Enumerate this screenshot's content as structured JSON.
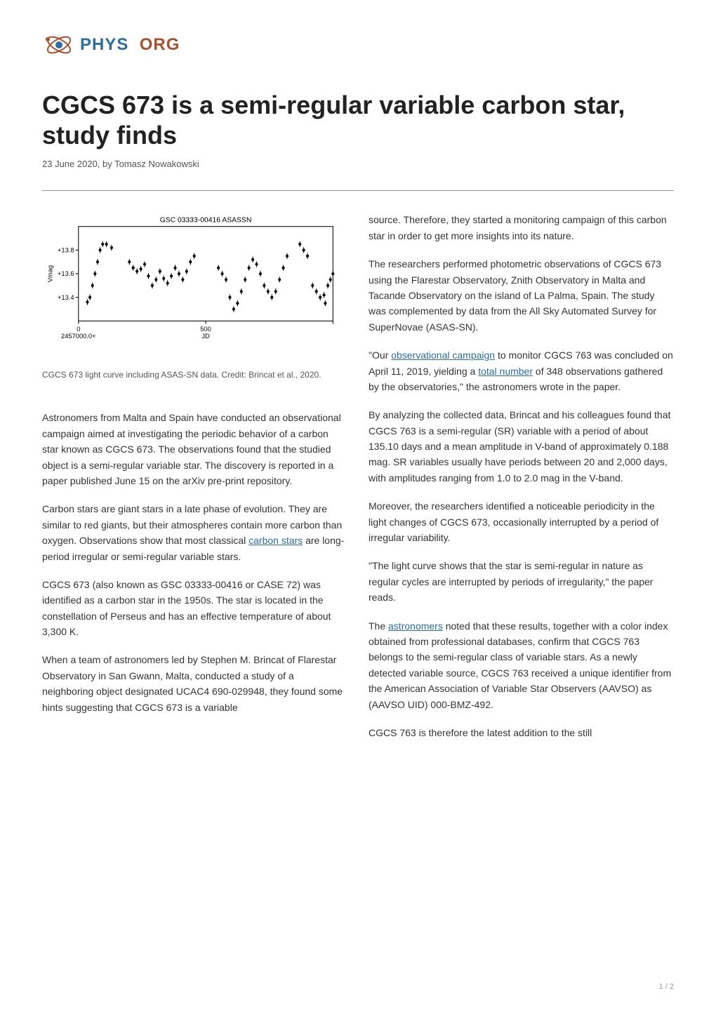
{
  "logo": {
    "phys": "PHYS",
    "org": "ORG",
    "icon_colors": {
      "atom_ring": "#a8512e",
      "atom_center": "#2b6ca3",
      "x_mark": "#a8512e"
    }
  },
  "title": "CGCS 673 is a semi-regular variable carbon star, study finds",
  "byline": "23 June 2020, by Tomasz Nowakowski",
  "chart": {
    "type": "scatter",
    "title": "GSC 03333-00416 ASASSN",
    "title_fontsize": 10,
    "background_color": "#ffffff",
    "border_color": "#000000",
    "axis_color": "#000000",
    "label_fontsize": 9,
    "xlabel": "JD",
    "ylabel": "Vmag",
    "ylabel_rotation": 90,
    "xlim": [
      0,
      1000
    ],
    "xticks": [
      0,
      500,
      1000
    ],
    "xtick_labels": [
      "0\n2457000.0+",
      "500",
      ""
    ],
    "ylim": [
      14.0,
      13.2
    ],
    "yticks": [
      13.4,
      13.6,
      13.8
    ],
    "ytick_labels": [
      "+13.4",
      "+13.6",
      "+13.8"
    ],
    "y_inverted": true,
    "marker_style": "vertical-errorbar",
    "marker_color": "#000000",
    "marker_size": 2,
    "errorbar_length": 4,
    "data_points": [
      {
        "x": 35,
        "y": 13.36
      },
      {
        "x": 45,
        "y": 13.4
      },
      {
        "x": 55,
        "y": 13.5
      },
      {
        "x": 65,
        "y": 13.6
      },
      {
        "x": 75,
        "y": 13.7
      },
      {
        "x": 85,
        "y": 13.8
      },
      {
        "x": 95,
        "y": 13.85
      },
      {
        "x": 110,
        "y": 13.85
      },
      {
        "x": 130,
        "y": 13.82
      },
      {
        "x": 200,
        "y": 13.7
      },
      {
        "x": 215,
        "y": 13.65
      },
      {
        "x": 230,
        "y": 13.62
      },
      {
        "x": 245,
        "y": 13.64
      },
      {
        "x": 260,
        "y": 13.68
      },
      {
        "x": 275,
        "y": 13.58
      },
      {
        "x": 290,
        "y": 13.5
      },
      {
        "x": 305,
        "y": 13.55
      },
      {
        "x": 320,
        "y": 13.62
      },
      {
        "x": 335,
        "y": 13.56
      },
      {
        "x": 350,
        "y": 13.52
      },
      {
        "x": 365,
        "y": 13.58
      },
      {
        "x": 380,
        "y": 13.65
      },
      {
        "x": 395,
        "y": 13.6
      },
      {
        "x": 410,
        "y": 13.55
      },
      {
        "x": 425,
        "y": 13.62
      },
      {
        "x": 440,
        "y": 13.7
      },
      {
        "x": 455,
        "y": 13.75
      },
      {
        "x": 550,
        "y": 13.65
      },
      {
        "x": 565,
        "y": 13.6
      },
      {
        "x": 580,
        "y": 13.55
      },
      {
        "x": 595,
        "y": 13.4
      },
      {
        "x": 610,
        "y": 13.3
      },
      {
        "x": 625,
        "y": 13.35
      },
      {
        "x": 640,
        "y": 13.45
      },
      {
        "x": 655,
        "y": 13.55
      },
      {
        "x": 670,
        "y": 13.65
      },
      {
        "x": 685,
        "y": 13.72
      },
      {
        "x": 700,
        "y": 13.68
      },
      {
        "x": 715,
        "y": 13.6
      },
      {
        "x": 730,
        "y": 13.5
      },
      {
        "x": 745,
        "y": 13.45
      },
      {
        "x": 760,
        "y": 13.4
      },
      {
        "x": 775,
        "y": 13.45
      },
      {
        "x": 790,
        "y": 13.55
      },
      {
        "x": 805,
        "y": 13.65
      },
      {
        "x": 820,
        "y": 13.75
      },
      {
        "x": 870,
        "y": 13.85
      },
      {
        "x": 885,
        "y": 13.8
      },
      {
        "x": 900,
        "y": 13.75
      },
      {
        "x": 920,
        "y": 13.5
      },
      {
        "x": 935,
        "y": 13.45
      },
      {
        "x": 950,
        "y": 13.4
      },
      {
        "x": 965,
        "y": 13.42
      },
      {
        "x": 970,
        "y": 13.35
      },
      {
        "x": 980,
        "y": 13.5
      },
      {
        "x": 990,
        "y": 13.55
      },
      {
        "x": 1000,
        "y": 13.6
      }
    ]
  },
  "chart_caption": "CGCS 673 light curve including ASAS-SN data. Credit: Brincat et al., 2020.",
  "left_col": {
    "p1": "Astronomers from Malta and Spain have conducted an observational campaign aimed at investigating the periodic behavior of a carbon star known as CGCS 673. The observations found that the studied object is a semi-regular variable star. The discovery is reported in a paper published June 15 on the arXiv pre-print repository.",
    "p2_pre": "Carbon stars are giant stars in a late phase of evolution. They are similar to red giants, but their atmospheres contain more carbon than oxygen. Observations show that most classical ",
    "p2_link": "carbon stars",
    "p2_post": " are long-period irregular or semi-regular variable stars.",
    "p3": "CGCS 673 (also known as GSC 03333-00416 or CASE 72) was identified as a carbon star in the 1950s. The star is located in the constellation of Perseus and has an effective temperature of about 3,300 K.",
    "p4": "When a team of astronomers led by Stephen M. Brincat of Flarestar Observatory in San Gwann, Malta, conducted a study of a neighboring object designated UCAC4 690-029948, they found some hints suggesting that CGCS 673 is a variable"
  },
  "right_col": {
    "p1": "source. Therefore, they started a monitoring campaign of this carbon star in order to get more insights into its nature.",
    "p2": "The researchers performed photometric observations of CGCS 673 using the Flarestar Observatory, Znith Observatory in Malta and Tacande Observatory on the island of La Palma, Spain. The study was complemented by data from the All Sky Automated Survey for SuperNovae (ASAS-SN).",
    "p3_pre": "\"Our ",
    "p3_link1": "observational campaign",
    "p3_mid1": " to monitor CGCS 763 was concluded on April 11, 2019, yielding a ",
    "p3_link2": "total number",
    "p3_mid2": " of 348 observations gathered by the observatories,\" the astronomers wrote in the paper.",
    "p4": "By analyzing the collected data, Brincat and his colleagues found that CGCS 763 is a semi-regular (SR) variable with a period of about 135.10 days and a mean amplitude in V-band of approximately 0.188 mag. SR variables usually have periods between 20 and 2,000 days, with amplitudes ranging from 1.0 to 2.0 mag in the V-band.",
    "p5": "Moreover, the researchers identified a noticeable periodicity in the light changes of CGCS 673, occasionally interrupted by a period of irregular variability.",
    "p6": "\"The light curve shows that the star is semi-regular in nature as regular cycles are interrupted by periods of irregularity,\" the paper reads.",
    "p7_pre": "The ",
    "p7_link": "astronomers",
    "p7_post": " noted that these results, together with a color index obtained from professional databases, confirm that CGCS 763 belongs to the semi-regular class of variable stars. As a newly detected variable source, CGCS 763 received a unique identifier from the American Association of Variable Star Observers (AAVSO) as (AAVSO UID) 000-BMZ-492.",
    "p8": "CGCS 763 is therefore the latest addition to the still"
  },
  "page_number": "1 / 2",
  "colors": {
    "link": "#2b6ca3",
    "text": "#333333",
    "heading": "#222222",
    "byline": "#555555",
    "divider": "#999999",
    "page_num": "#999999"
  }
}
